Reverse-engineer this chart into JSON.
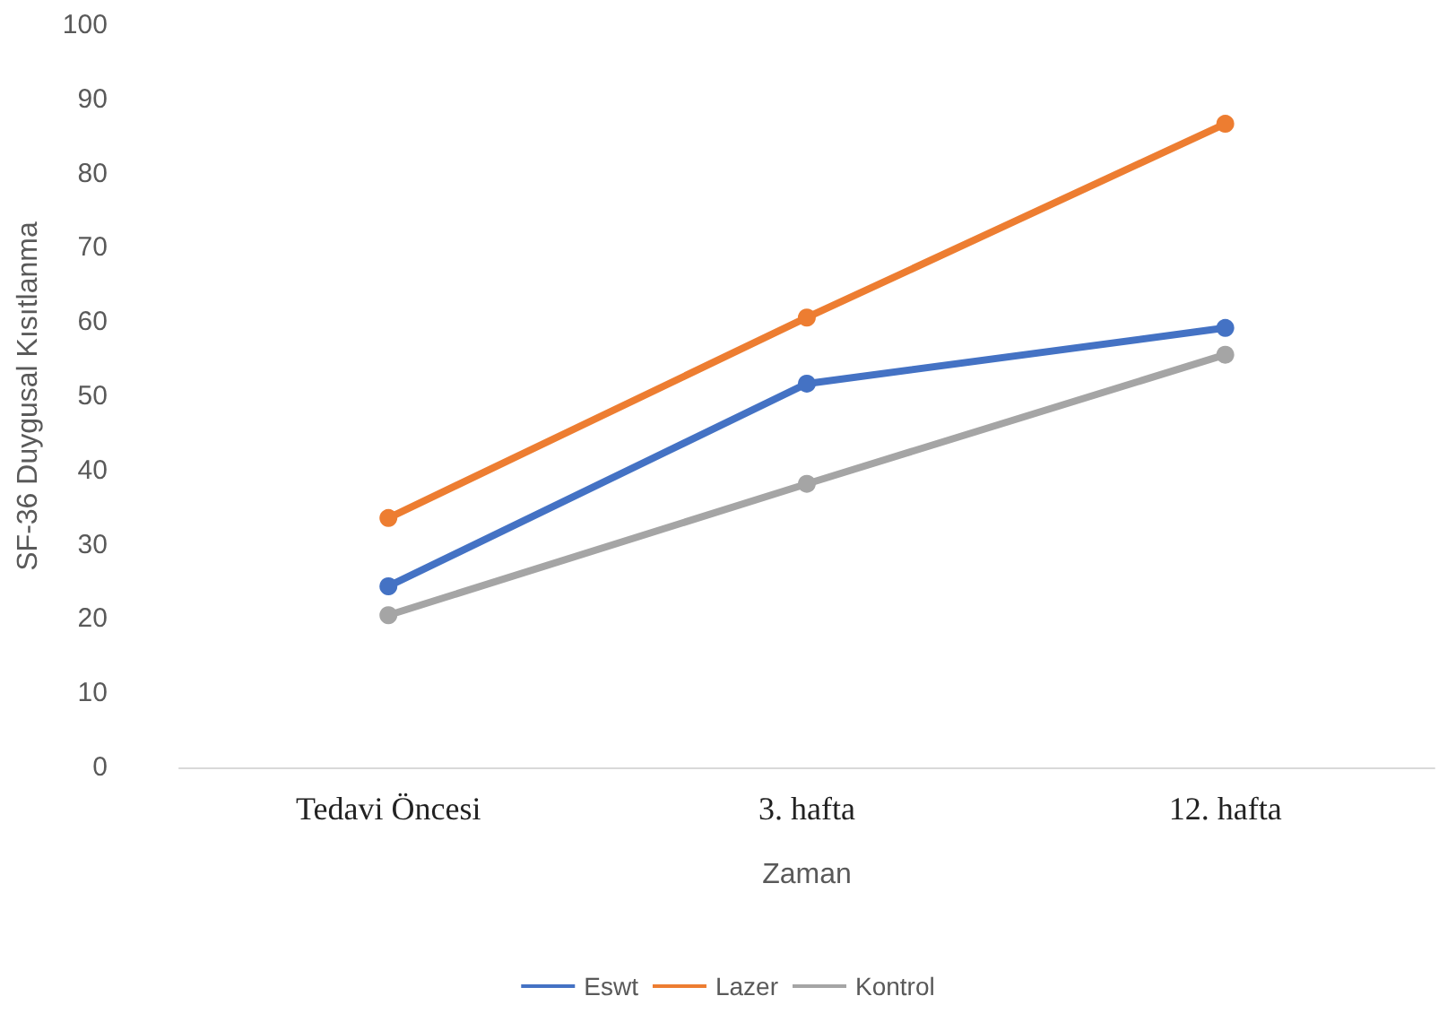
{
  "chart_data": {
    "type": "line",
    "xlabel": "Zaman",
    "ylabel": "SF-36 Duygusal Kısıtlanma",
    "categories": [
      "Tedavi Öncesi",
      "3. hafta",
      "12. hafta"
    ],
    "series": [
      {
        "name": "Eswt",
        "color": "#4472c4",
        "values": [
          24.4,
          51.7,
          59.2
        ]
      },
      {
        "name": "Lazer",
        "color": "#ed7d31",
        "values": [
          33.6,
          60.6,
          86.7
        ]
      },
      {
        "name": "Kontrol",
        "color": "#a5a5a5",
        "values": [
          20.5,
          38.2,
          55.6
        ]
      }
    ],
    "ylim": [
      0,
      100
    ],
    "yticks": [
      0,
      10,
      20,
      30,
      40,
      50,
      60,
      70,
      80,
      90,
      100
    ],
    "grid": false,
    "legend": "bottom",
    "marker": "circle",
    "line_style": "solid"
  }
}
